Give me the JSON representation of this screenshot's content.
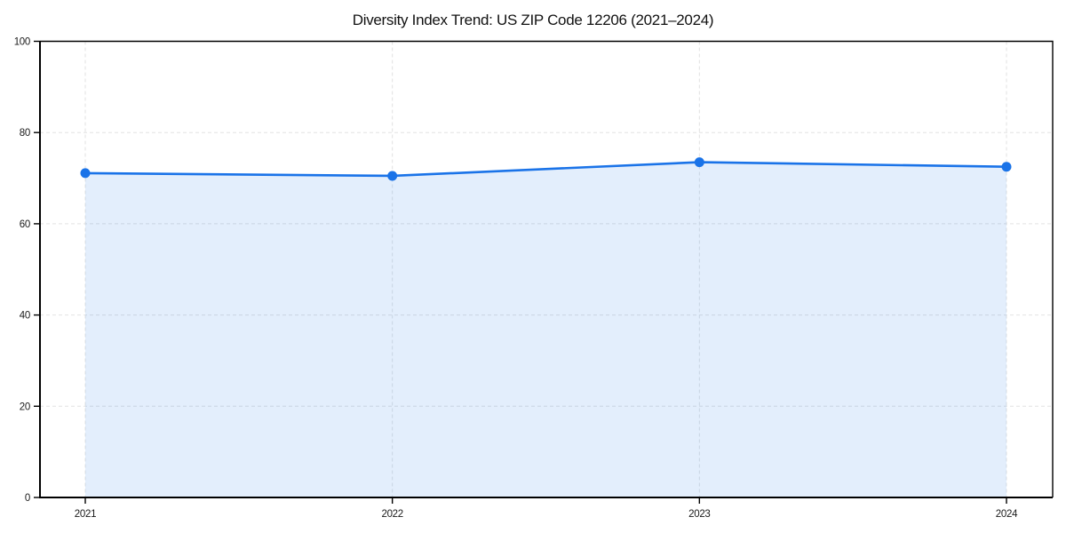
{
  "chart_data": {
    "type": "area",
    "title": "Diversity Index Trend: US ZIP Code 12206 (2021–2024)",
    "x": [
      "2021",
      "2022",
      "2023",
      "2024"
    ],
    "values": [
      71.1,
      70.5,
      73.5,
      72.5
    ],
    "xlabel": "",
    "ylabel": "",
    "ylim": [
      0,
      100
    ],
    "yticks": [
      0,
      20,
      40,
      60,
      80,
      100
    ],
    "grid": true,
    "grid_style": "dashed",
    "legend": "none",
    "marker": "circle",
    "colors": {
      "line": "#1a73e8",
      "marker": "#1a73e8",
      "fill": "rgba(26,115,232,0.12)",
      "grid": "#e2e2e2",
      "axis": "#000000",
      "text": "#1a1a1a",
      "background": "#ffffff"
    }
  }
}
